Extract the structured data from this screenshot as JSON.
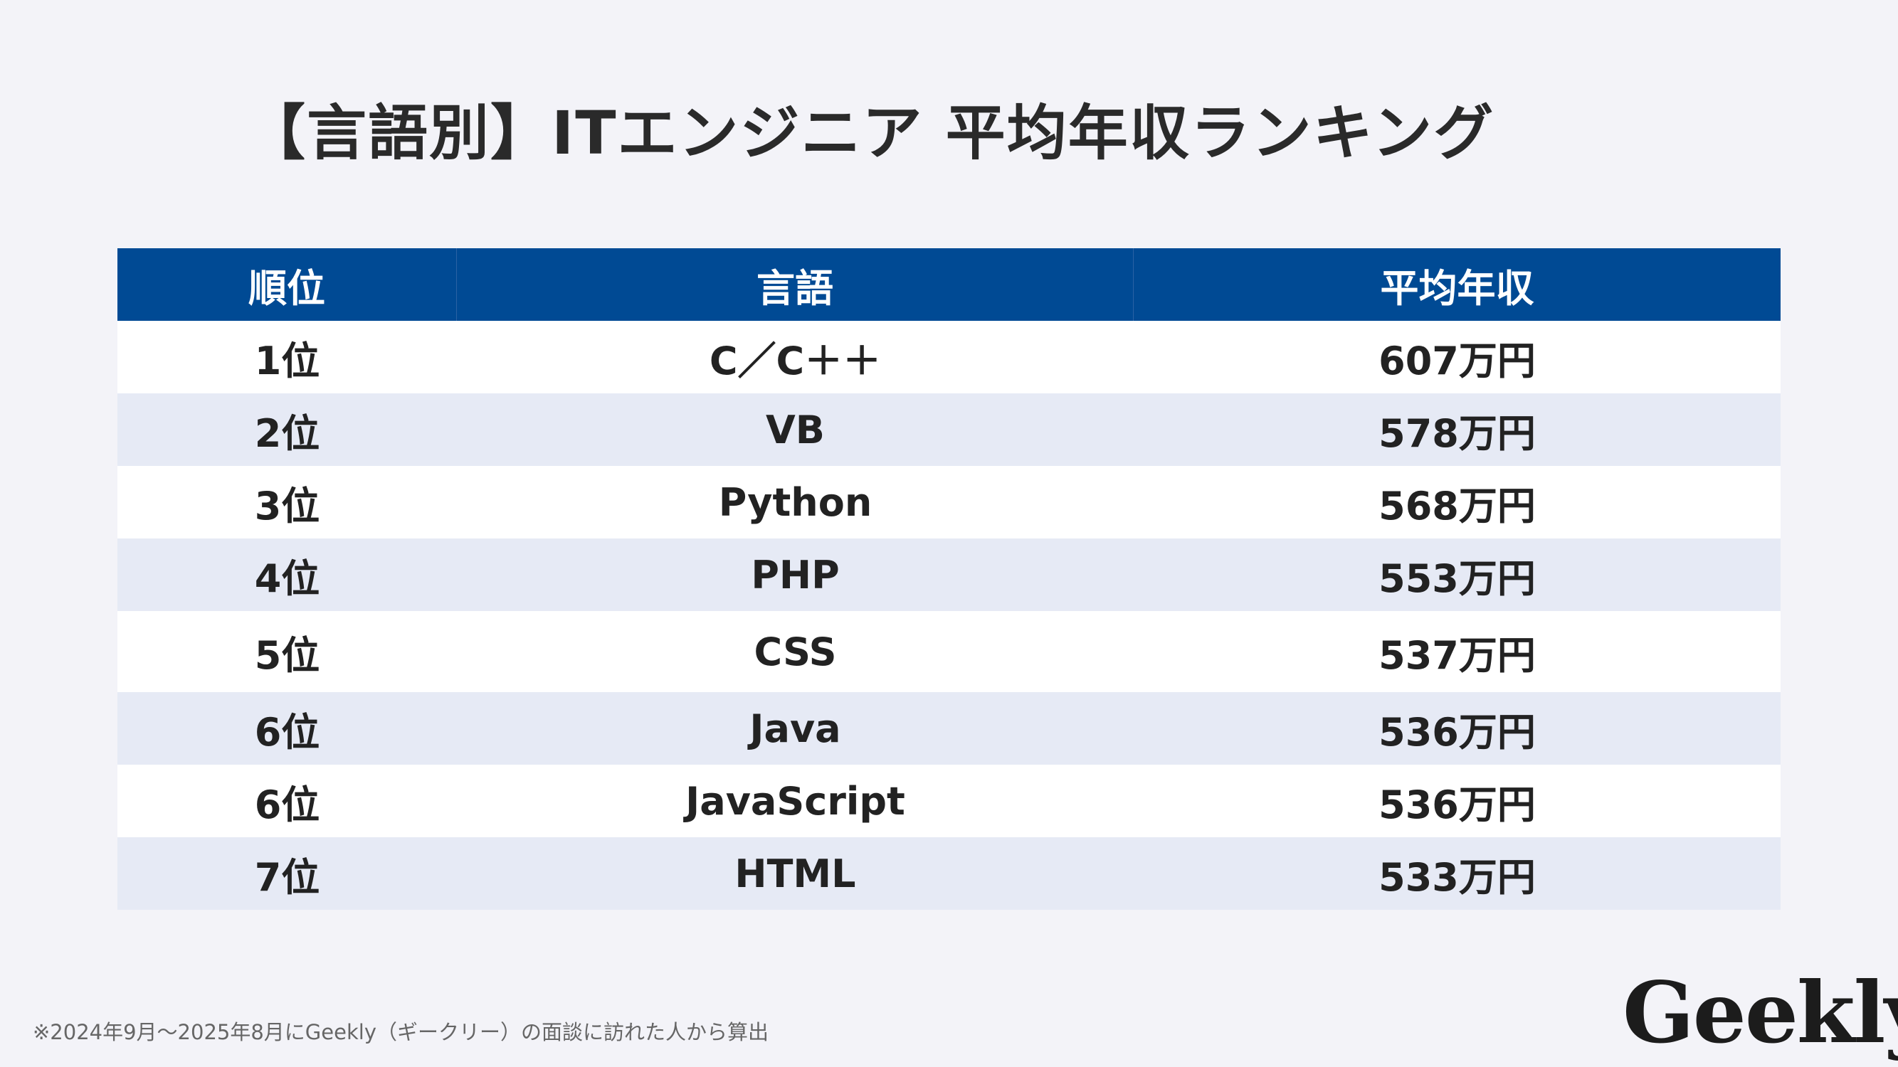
{
  "title": "【言語別】ITエンジニア 平均年収ランキング",
  "table": {
    "headers": [
      "順位",
      "言語",
      "平均年収"
    ],
    "rows": [
      {
        "rank": "1位",
        "language": "C／C＋＋",
        "salary": "607万円"
      },
      {
        "rank": "2位",
        "language": "VB",
        "salary": "578万円"
      },
      {
        "rank": "3位",
        "language": "Python",
        "salary": "568万円"
      },
      {
        "rank": "4位",
        "language": "PHP",
        "salary": "553万円"
      },
      {
        "rank": "5位",
        "language": "CSS",
        "salary": "537万円"
      },
      {
        "rank": "6位",
        "language": "Java",
        "salary": "536万円"
      },
      {
        "rank": "6位",
        "language": "JavaScript",
        "salary": "536万円"
      },
      {
        "rank": "7位",
        "language": "HTML",
        "salary": "533万円"
      }
    ]
  },
  "footnote": "※2024年9月～2025年8月にGeekly（ギークリー）の面談に訪れた人から算出",
  "logo": "Geekly",
  "colors": {
    "header": "#004a94",
    "row_alt": "#e6eaf5",
    "background": "#f3f3f8"
  }
}
